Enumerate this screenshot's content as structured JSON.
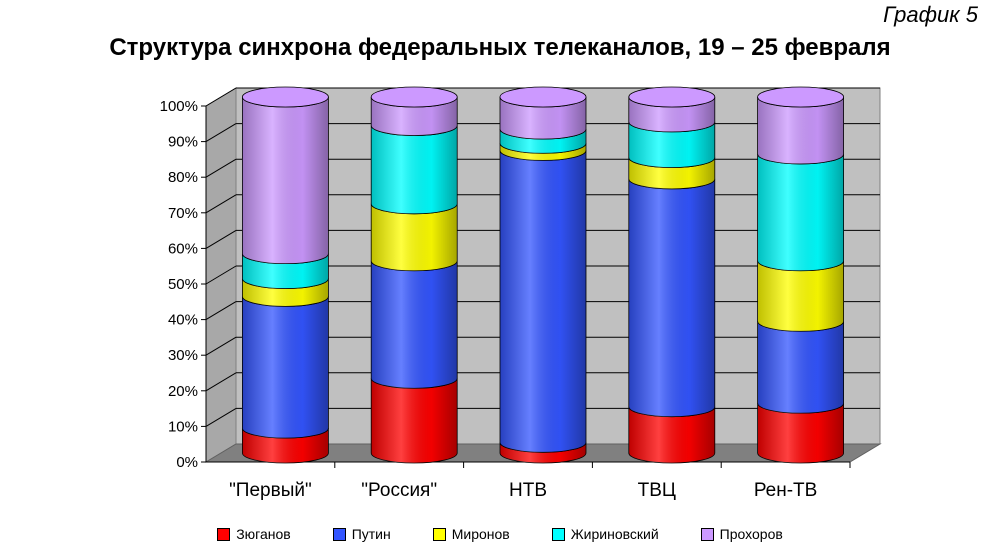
{
  "caption": "График 5",
  "chart_data": {
    "type": "bar",
    "stacked": "percent",
    "title": "Структура синхрона федеральных телеканалов, 19 – 25 февраля",
    "categories": [
      "\"Первый\"",
      "\"Россия\"",
      "НТВ",
      "ТВЦ",
      "Рен-ТВ"
    ],
    "yticks": [
      "0%",
      "10%",
      "20%",
      "30%",
      "40%",
      "50%",
      "60%",
      "70%",
      "80%",
      "90%",
      "100%"
    ],
    "ylim": [
      0,
      100
    ],
    "grid": true,
    "legend_position": "bottom",
    "series": [
      {
        "name": "Зюганов",
        "color": "#ff0000",
        "values": [
          7,
          21,
          3,
          13,
          14
        ]
      },
      {
        "name": "Путин",
        "color": "#3355ff",
        "values": [
          37,
          33,
          82,
          64,
          23
        ]
      },
      {
        "name": "Миронов",
        "color": "#ffff00",
        "values": [
          5,
          16,
          2,
          6,
          17
        ]
      },
      {
        "name": "Жириновский",
        "color": "#00ffff",
        "values": [
          7,
          22,
          4,
          10,
          30
        ]
      },
      {
        "name": "Прохоров",
        "color": "#cc99ff",
        "values": [
          44,
          8,
          9,
          7,
          16
        ]
      }
    ]
  }
}
